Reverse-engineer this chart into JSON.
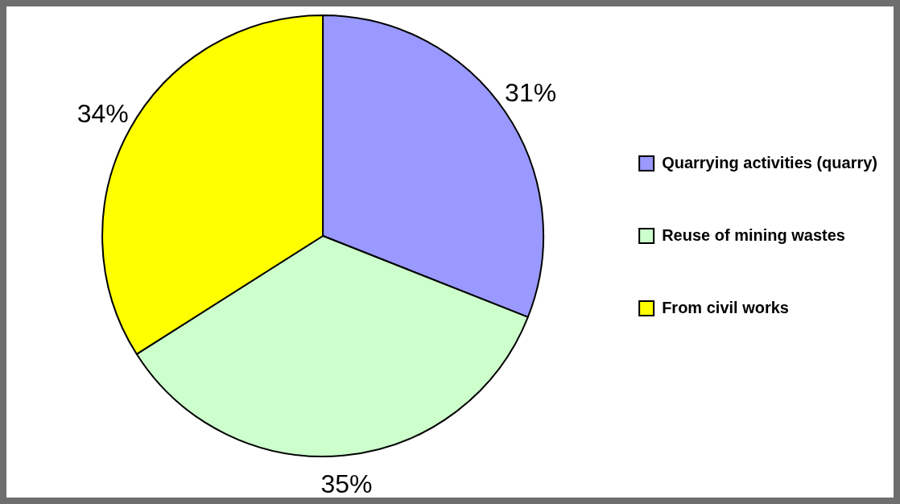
{
  "chart_data": {
    "type": "pie",
    "categories": [
      "Quarrying activities (quarry)",
      "Reuse of mining wastes",
      "From civil works"
    ],
    "values": [
      31,
      35,
      34
    ],
    "colors": [
      "#9999ff",
      "#ccffcc",
      "#ffff00"
    ],
    "value_labels": [
      "31%",
      "35%",
      "34%"
    ],
    "legend": "right"
  }
}
